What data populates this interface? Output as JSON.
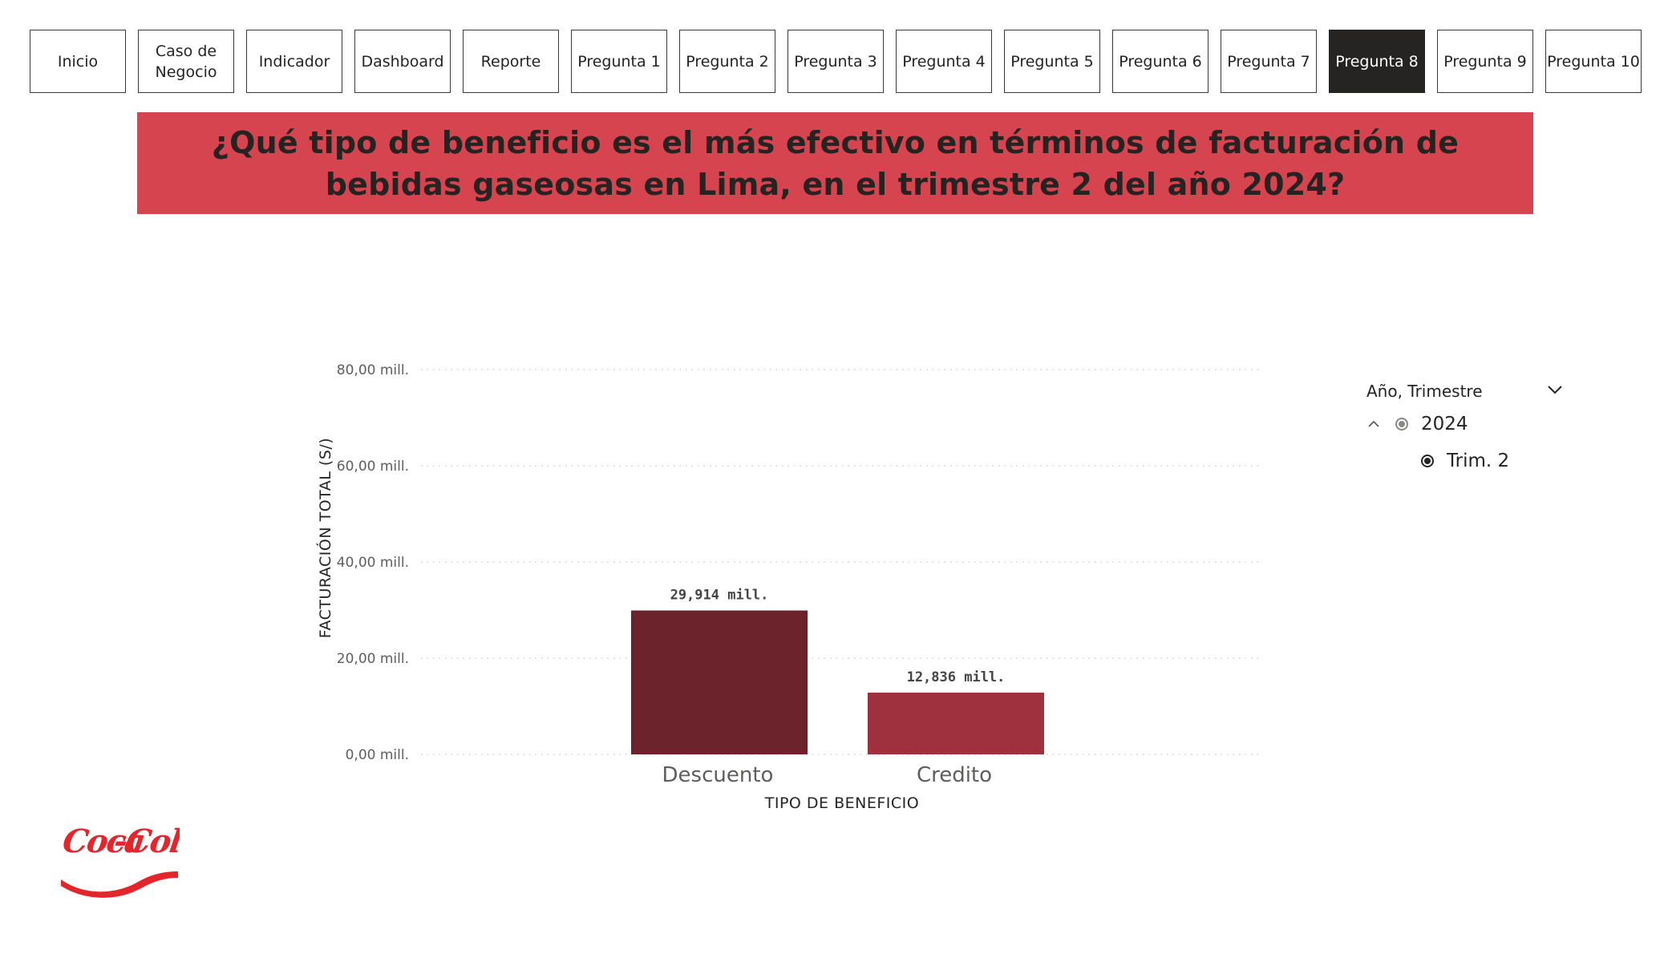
{
  "nav": {
    "buttons": [
      {
        "label": "Inicio",
        "active": false
      },
      {
        "label": "Caso de\nNegocio",
        "active": false
      },
      {
        "label": "Indicador",
        "active": false
      },
      {
        "label": "Dashboard",
        "active": false
      },
      {
        "label": "Reporte",
        "active": false
      },
      {
        "label": "Pregunta 1",
        "active": false
      },
      {
        "label": "Pregunta 2",
        "active": false
      },
      {
        "label": "Pregunta 3",
        "active": false
      },
      {
        "label": "Pregunta 4",
        "active": false
      },
      {
        "label": "Pregunta 5",
        "active": false
      },
      {
        "label": "Pregunta 6",
        "active": false
      },
      {
        "label": "Pregunta 7",
        "active": false
      },
      {
        "label": "Pregunta 8",
        "active": true
      },
      {
        "label": "Pregunta 9",
        "active": false
      },
      {
        "label": "Pregunta 10",
        "active": false
      }
    ]
  },
  "banner": {
    "title": "¿Qué tipo de beneficio es el más efectivo en términos de facturación de bebidas gaseosas en Lima, en el trimestre 2 del año 2024?"
  },
  "slicer": {
    "title": "Año, Trimestre",
    "year": "2024",
    "quarter": "Trim. 2"
  },
  "logo": {
    "text": "Coca-Cola"
  },
  "colors": {
    "banner": "#d5444f",
    "bar_descuento": "#6d232b",
    "bar_credito": "#9e313d",
    "active_button": "#252423"
  },
  "chart_data": {
    "type": "bar",
    "categories": [
      "Descuento",
      "Credito"
    ],
    "values": [
      29.914,
      12.836
    ],
    "value_labels": [
      "29,914 mill.",
      "12,836 mill."
    ],
    "xlabel": "TIPO DE BENEFICIO",
    "ylabel": "FACTURACIÓN TOTAL (S/)",
    "ylim": [
      0,
      80
    ],
    "yticks": [
      0,
      20,
      40,
      60,
      80
    ],
    "ytick_labels": [
      "0,00 mill.",
      "20,00 mill.",
      "40,00 mill.",
      "60,00 mill.",
      "80,00 mill."
    ],
    "grid": true,
    "legend": "none"
  }
}
